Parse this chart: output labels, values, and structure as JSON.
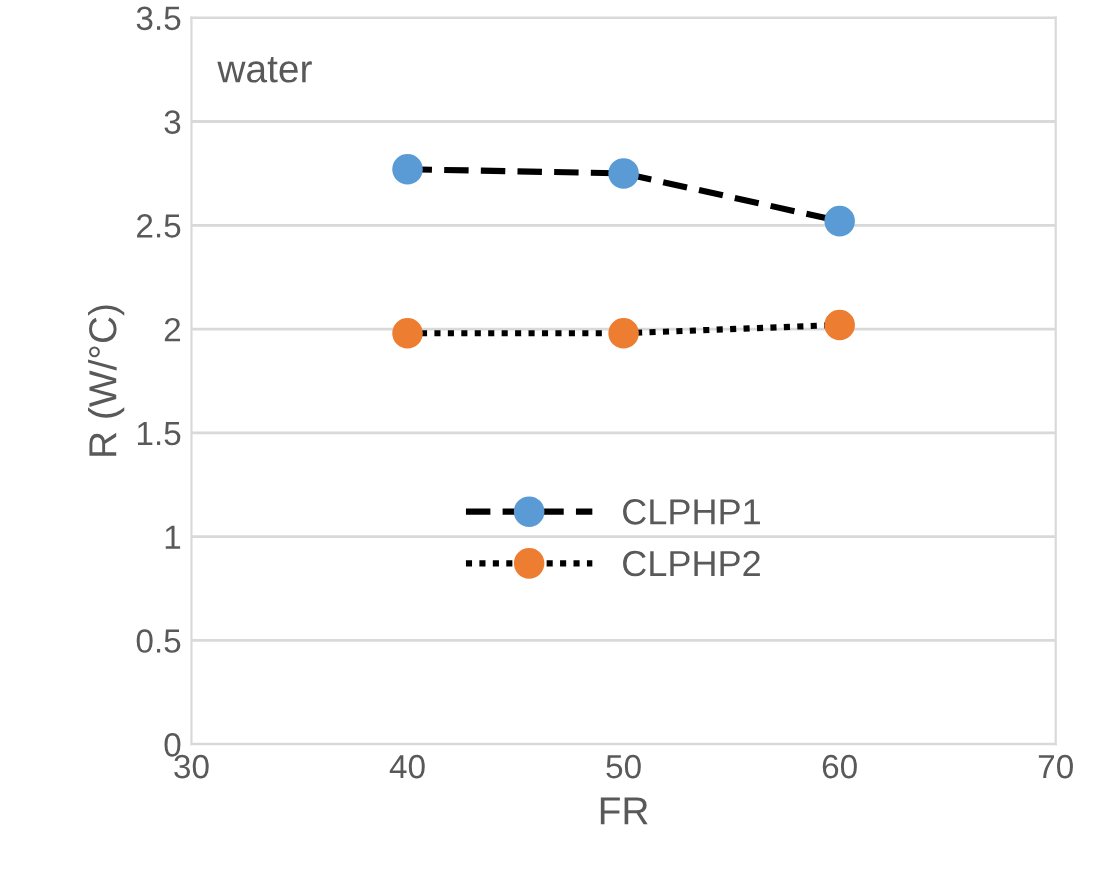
{
  "chart_data": {
    "type": "line",
    "xlabel": "FR",
    "ylabel": "R (W/°C)",
    "x": [
      40,
      50,
      60
    ],
    "series": [
      {
        "name": "CLPHP1",
        "color": "#5b9bd5",
        "values": [
          2.77,
          2.75,
          2.52
        ],
        "line_style": "dashed"
      },
      {
        "name": "CLPHP2",
        "color": "#ed7d31",
        "values": [
          1.98,
          1.98,
          2.02
        ],
        "line_style": "dotted"
      }
    ],
    "xlim": [
      30,
      70
    ],
    "xticks": [
      30,
      40,
      50,
      60,
      70
    ],
    "ylim": [
      0,
      3.5
    ],
    "yticks": [
      0,
      0.5,
      1,
      1.5,
      2,
      2.5,
      3,
      3.5
    ],
    "grid": "y",
    "legend": "center left",
    "marker": "circle",
    "annotations": [
      "water"
    ]
  }
}
